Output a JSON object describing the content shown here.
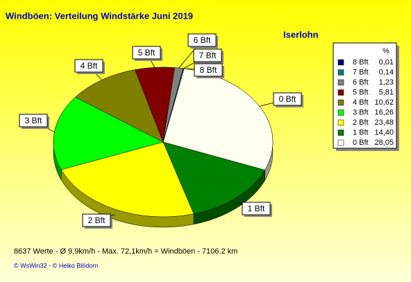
{
  "chart_data": {
    "type": "pie",
    "title": "Windböen: Verteilung Windstärke  Juni 2019",
    "subtitle": "Iserlohn",
    "categories": [
      "0 Bft",
      "1 Bft",
      "2 Bft",
      "3 Bft",
      "4 Bft",
      "5 Bft",
      "6 Bft",
      "7 Bft",
      "8 Bft"
    ],
    "values": [
      28.05,
      14.4,
      23.48,
      16.26,
      10.62,
      5.81,
      1.23,
      0.14,
      0.01
    ],
    "value_labels": [
      "28,05",
      "14,40",
      "23,48",
      "16,26",
      "10,62",
      "5,81",
      "1,23",
      "0,14",
      "0,01"
    ],
    "colors": [
      "#fffff0",
      "#008000",
      "#ffff00",
      "#00ff00",
      "#808000",
      "#800000",
      "#808080",
      "#008080",
      "#000080"
    ],
    "legend_header": "%",
    "footer": "8637 Werte   -   Ø 9,9km/h  -  Max. 72,1km/h = Windböen   -   7106.2 km",
    "credit": "© WsWin32  -  © Heiko Blödorn"
  }
}
